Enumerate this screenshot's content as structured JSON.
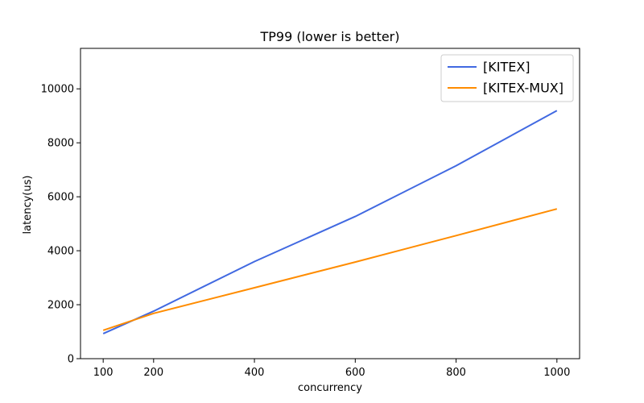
{
  "chart_data": {
    "type": "line",
    "title": "TP99 (lower is better)",
    "xlabel": "concurrency",
    "ylabel": "latency(us)",
    "x": [
      100,
      200,
      400,
      600,
      800,
      1000
    ],
    "x_ticks": [
      "100",
      "200",
      "400",
      "600",
      "800",
      "1000"
    ],
    "y_ticks": [
      0,
      2000,
      4000,
      6000,
      8000,
      10000
    ],
    "ylim": [
      0,
      11500
    ],
    "grid": false,
    "legend_position": "top-right",
    "series": [
      {
        "name": "[KITEX]",
        "color": "#4169e1",
        "values": [
          930,
          1760,
          3600,
          5270,
          7150,
          9190
        ]
      },
      {
        "name": "[KITEX-MUX]",
        "color": "#ff8c00",
        "values": [
          1050,
          1680,
          2630,
          3580,
          4560,
          5550
        ]
      }
    ]
  }
}
